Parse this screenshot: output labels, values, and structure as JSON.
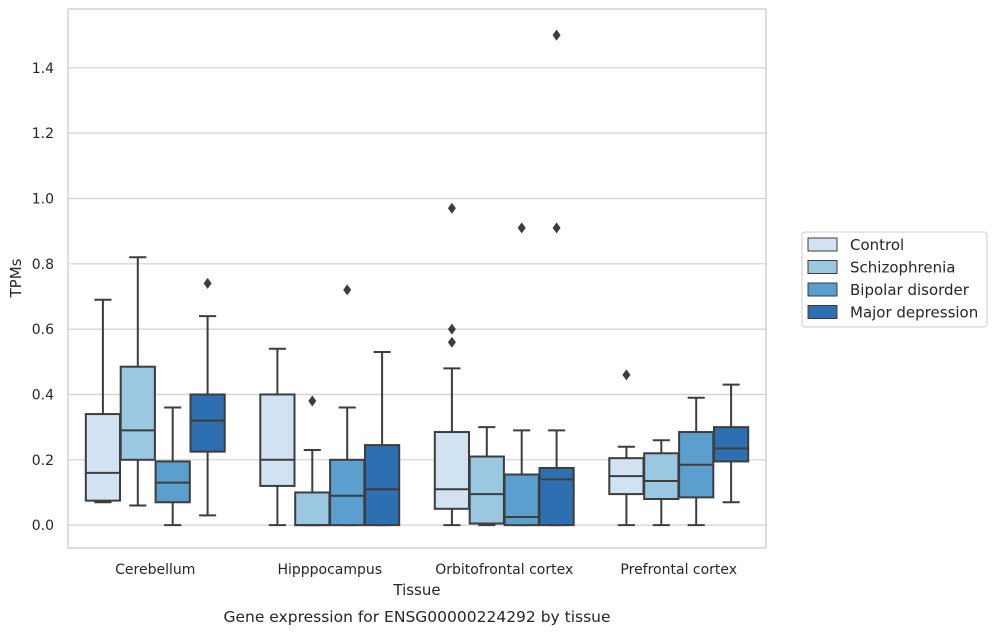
{
  "chart_data": {
    "type": "boxplot",
    "caption": "Gene expression for ENSG00000224292 by tissue",
    "xlabel": "Tissue",
    "ylabel": "TPMs",
    "ylim": [
      -0.07,
      1.58
    ],
    "yticks": [
      0.0,
      0.2,
      0.4,
      0.6,
      0.8,
      1.0,
      1.2,
      1.4
    ],
    "grid": "horizontal",
    "legend_position": "right",
    "categories": [
      "Cerebellum",
      "Hipppocampus",
      "Orbitofrontal cortex",
      "Prefrontal cortex"
    ],
    "series": [
      {
        "name": "Control",
        "color": "#d1e2f2",
        "boxes": [
          {
            "whislo": 0.07,
            "q1": 0.075,
            "med": 0.16,
            "q3": 0.34,
            "whishi": 0.69,
            "fliers": []
          },
          {
            "whislo": 0.0,
            "q1": 0.12,
            "med": 0.2,
            "q3": 0.4,
            "whishi": 0.54,
            "fliers": []
          },
          {
            "whislo": 0.0,
            "q1": 0.05,
            "med": 0.11,
            "q3": 0.285,
            "whishi": 0.48,
            "fliers": [
              0.56,
              0.6,
              0.97
            ]
          },
          {
            "whislo": 0.0,
            "q1": 0.095,
            "med": 0.15,
            "q3": 0.205,
            "whishi": 0.24,
            "fliers": [
              0.46
            ]
          }
        ]
      },
      {
        "name": "Schizophrenia",
        "color": "#9ac8e0",
        "boxes": [
          {
            "whislo": 0.06,
            "q1": 0.2,
            "med": 0.29,
            "q3": 0.485,
            "whishi": 0.82,
            "fliers": []
          },
          {
            "whislo": 0.0,
            "q1": 0.0,
            "med": 0.0,
            "q3": 0.1,
            "whishi": 0.23,
            "fliers": [
              0.38
            ]
          },
          {
            "whislo": 0.0,
            "q1": 0.005,
            "med": 0.095,
            "q3": 0.21,
            "whishi": 0.3,
            "fliers": []
          },
          {
            "whislo": 0.0,
            "q1": 0.08,
            "med": 0.135,
            "q3": 0.22,
            "whishi": 0.26,
            "fliers": []
          }
        ]
      },
      {
        "name": "Bipolar disorder",
        "color": "#5a9fcd",
        "boxes": [
          {
            "whislo": 0.0,
            "q1": 0.07,
            "med": 0.13,
            "q3": 0.195,
            "whishi": 0.36,
            "fliers": []
          },
          {
            "whislo": 0.0,
            "q1": 0.0,
            "med": 0.09,
            "q3": 0.2,
            "whishi": 0.36,
            "fliers": [
              0.72
            ]
          },
          {
            "whislo": 0.0,
            "q1": 0.0,
            "med": 0.025,
            "q3": 0.155,
            "whishi": 0.29,
            "fliers": [
              0.91
            ]
          },
          {
            "whislo": 0.0,
            "q1": 0.085,
            "med": 0.185,
            "q3": 0.285,
            "whishi": 0.39,
            "fliers": []
          }
        ]
      },
      {
        "name": "Major depression",
        "color": "#2d6fb0",
        "boxes": [
          {
            "whislo": 0.03,
            "q1": 0.225,
            "med": 0.32,
            "q3": 0.4,
            "whishi": 0.64,
            "fliers": [
              0.74
            ]
          },
          {
            "whislo": 0.0,
            "q1": 0.0,
            "med": 0.11,
            "q3": 0.245,
            "whishi": 0.53,
            "fliers": []
          },
          {
            "whislo": 0.0,
            "q1": 0.0,
            "med": 0.14,
            "q3": 0.175,
            "whishi": 0.29,
            "fliers": [
              0.91,
              1.5
            ]
          },
          {
            "whislo": 0.07,
            "q1": 0.195,
            "med": 0.235,
            "q3": 0.3,
            "whishi": 0.43,
            "fliers": []
          }
        ]
      }
    ]
  },
  "colors": {
    "line": "#3d3d3d",
    "grid": "#d0d0d0",
    "frame": "#cccccc",
    "text": "#262626"
  }
}
